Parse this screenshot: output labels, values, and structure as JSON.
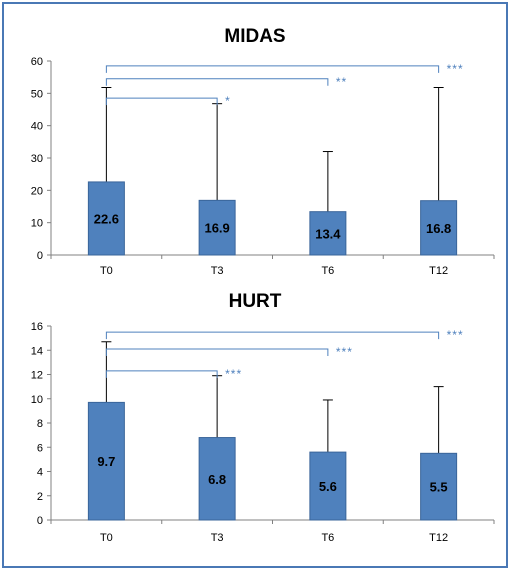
{
  "colors": {
    "bar": "#4f81bd",
    "bar_edge": "#3a659a",
    "bracket": "#4f81bd",
    "sig_text": "#4f81bd",
    "axis": "#808080",
    "frame": "#4a78b5"
  },
  "chart_data": [
    {
      "type": "bar",
      "title": "MIDAS",
      "categories": [
        "T0",
        "T3",
        "T6",
        "T12"
      ],
      "values": [
        22.6,
        16.9,
        13.4,
        16.8
      ],
      "value_labels": [
        "22.6",
        "16.9",
        "13.4",
        "16.8"
      ],
      "error_upper": [
        51.8,
        46.8,
        32.0,
        51.8
      ],
      "ylim": [
        0,
        60
      ],
      "yticks": [
        0,
        10,
        20,
        30,
        40,
        50,
        60
      ],
      "ytick_labels": [
        "0",
        "10",
        "20",
        "30",
        "40",
        "50",
        "60"
      ],
      "grid": false,
      "significance": [
        {
          "from": "T0",
          "to": "T3",
          "label": "*",
          "y": 48.5
        },
        {
          "from": "T0",
          "to": "T6",
          "label": "**",
          "y": 54.5
        },
        {
          "from": "T0",
          "to": "T12",
          "label": "***",
          "y": 58.5
        }
      ]
    },
    {
      "type": "bar",
      "title": "HURT",
      "categories": [
        "T0",
        "T3",
        "T6",
        "T12"
      ],
      "values": [
        9.7,
        6.8,
        5.6,
        5.5
      ],
      "value_labels": [
        "9.7",
        "6.8",
        "5.6",
        "5.5"
      ],
      "error_upper": [
        14.7,
        11.9,
        9.9,
        11.0
      ],
      "ylim": [
        0,
        16
      ],
      "yticks": [
        0,
        2,
        4,
        6,
        8,
        10,
        12,
        14,
        16
      ],
      "ytick_labels": [
        "0",
        "2",
        "4",
        "6",
        "8",
        "10",
        "12",
        "14",
        "16"
      ],
      "grid": false,
      "significance": [
        {
          "from": "T0",
          "to": "T3",
          "label": "***",
          "y": 12.3
        },
        {
          "from": "T0",
          "to": "T6",
          "label": "***",
          "y": 14.1
        },
        {
          "from": "T0",
          "to": "T12",
          "label": "***",
          "y": 15.5
        }
      ]
    }
  ]
}
